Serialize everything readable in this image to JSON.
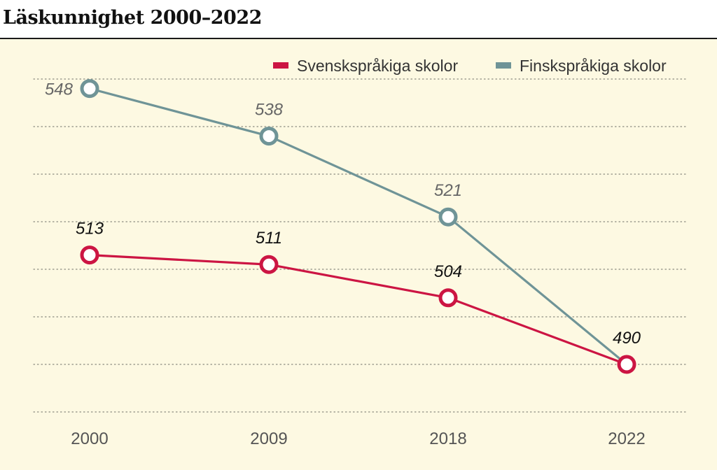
{
  "title": "Läskunnighet 2000–2022",
  "chart_data": {
    "type": "line",
    "title": "Läskunnighet 2000–2022",
    "categories": [
      "2000",
      "2009",
      "2018",
      "2022"
    ],
    "series": [
      {
        "name": "Svenskspråkiga skolor",
        "values": [
          513,
          511,
          504,
          490
        ],
        "color": "#cc1543"
      },
      {
        "name": "Finskspråkiga skolor",
        "values": [
          548,
          538,
          521,
          490
        ],
        "color": "#6f9497"
      }
    ],
    "data_labels": {
      "Svenskspråkiga skolor": [
        "513",
        "511",
        "504",
        "490"
      ],
      "Finskspråkiga skolor": [
        "548",
        "538",
        "521",
        ""
      ]
    },
    "ylim": [
      480,
      550
    ],
    "xlabel": "",
    "ylabel": "",
    "grid": "horizontal dotted",
    "legend_position": "top-right",
    "colors": {
      "background": "#fdf9e2",
      "grid": "#8a8a80",
      "tick_text": "#555555",
      "label_text": "#111111",
      "label_text_light": "#666666"
    }
  }
}
